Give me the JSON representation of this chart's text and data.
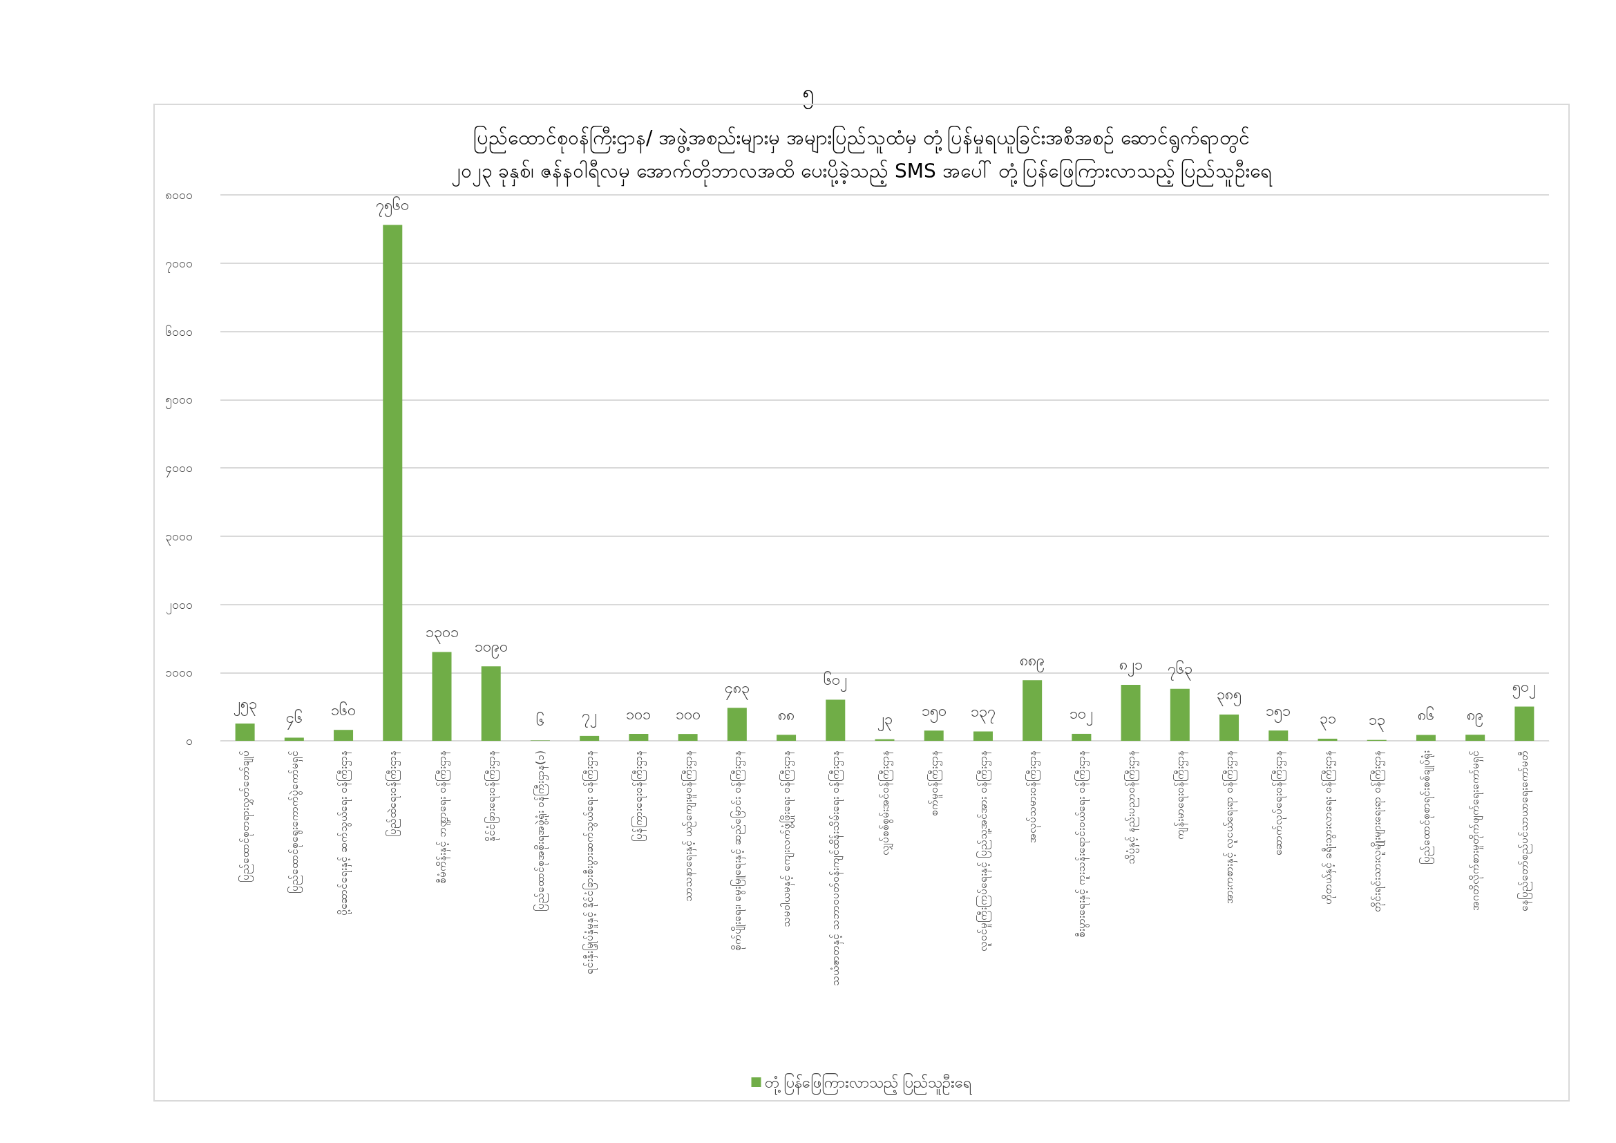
{
  "chart_data": {
    "type": "bar",
    "title": "ပြည်ထောင်စုဝန်ကြီးဌာန/ အဖွဲ့အစည်းများမှ အများပြည်သူထံမှ တုံ့ပြန်မှုရယူခြင်းအစီအစဉ် ဆောင်ရွက်ရာတွင်\n၂၀၂၃ ခုနှစ်၊ ဇန်နဝါရီလမှ အောက်တိုဘာလအထိ ပေးပို့ခဲ့သည့် SMS အပေါ် တုံ့ပြန်ဖြေကြားလာသည့် ပြည်သူဦးရေ",
    "annotations": [
      "၅"
    ],
    "categories": [
      "ပြည်ထောင်စုတရားလွှတ်တော်ချုပ်",
      "ပြည်ထောင်စုရွေးကောက်ပွဲကော်မရှင်",
      "ပို့ဆောင်ရေးနှင့် ဆက်သွယ်ရေး ဝန်ကြီးဌာန",
      "ပြည်ထဲရေးဝန်ကြီးဌာန",
      "စီမံကိန်းနှင့် ဘဏ္ဍာရေး ဝန်ကြီးဌာန",
      "နိုင်ငံခြားရေးဝန်ကြီးဌာန",
      "ပြည်ထောင်စုအစိုးရအဖွဲ့ရုံး ဝန်ကြီးဌာန(၁)",
      "ရင်းနှီးမြှုပ်နှံမှုနှင့် နိုင်ငံခြားစီးပွားဆက်သွယ်ရေး ဝန်ကြီးဌာန",
      "ပြန်ကြားရေးဝန်ကြီးဌာန",
      "သာသနာရေးနှင့် ယဉ်ကျေးမှုဝန်ကြီးဌာန",
      "စိုက်ပျိုးရေး၊ မွေးမြူရေးနှင့် ဆည်မြောင်း ဝန်ကြီးဌာန",
      "သမဝါယမနှင့် ကျေးလက်ဖွံ့ဖြိုးရေး ဝန်ကြီးဌာန",
      "သယံဇာတနှင့် သဘာဝပတ်ဝန်းကျင်ထိန်းသိမ်းရေး ဝန်ကြီးဌာန",
      "လျှပ်စစ်စွမ်းအင်ဝန်ကြီးဌာန",
      "စက်မှုဝန်ကြီးဌာန",
      "လူဝင်မှုကြီးကြပ်ရေးနှင့် ပြည်သူ့အင်အား ဝန်ကြီးဌာန",
      "အလုပ်သမားဝန်ကြီးဌာန",
      "စီးပွားရေးနှင့် ကူးသန်းရောင်းဝယ်ရေး ဝန်ကြီးဌာန",
      "သိပ္ပံနှင့် နည်းပညာဝန်ကြီးဌာန",
      "ကျန်းမာရေးဝန်ကြီးဌာန",
      "အားကစားနှင့် လူငယ်ရေးရာ ဝန်ကြီးဌာန",
      "ဆောက်လုပ်ရေးဝန်ကြီးဌာန",
      "ဟိုတယ်နှင့် ခရီးသွားလာရေး ဝန်ကြီးဌာန",
      "တိုင်းရင်းသားလူမျိုးများရေးရာ ဝန်ကြီးဌာန",
      "ပြည်ထောင်စုစာရင်းစစ်ချုပ်ရုံး",
      "အဂတိလိုက်စားမှုတိုက်ဖျက်ရေးကော်မရှင်",
      "နေပြည်တော်စည်ပင်သာယာရေးကော်မတီ"
    ],
    "series": [
      {
        "name": "တုံ့ပြန်ဖြေကြားလာသည့် ပြည်သူဦးရေ",
        "color": "#70ad47",
        "values": [
          253,
          46,
          160,
          7560,
          1301,
          1090,
          6,
          72,
          101,
          100,
          483,
          88,
          602,
          23,
          150,
          137,
          889,
          102,
          821,
          763,
          385,
          151,
          31,
          13,
          86,
          89,
          502
        ],
        "value_labels": [
          "၂၅၃",
          "၄၆",
          "၁၆၀",
          "၇၅၆၀",
          "၁၃၀၁",
          "၁၀၉၀",
          "၆",
          "၇၂",
          "၁၀၁",
          "၁၀၀",
          "၄၈၃",
          "၈၈",
          "၆၀၂",
          "၂၃",
          "၁၅၀",
          "၁၃၇",
          "၈၈၉",
          "၁၀၂",
          "၈၂၁",
          "၇၆၃",
          "၃၈၅",
          "၁၅၁",
          "၃၁",
          "၁၃",
          "၈၆",
          "၈၉",
          "၅၀၂"
        ]
      }
    ],
    "ylim": [
      0,
      8000
    ],
    "yticks": [
      {
        "value": 0,
        "label": "၀"
      },
      {
        "value": 1000,
        "label": "၁၀၀၀"
      },
      {
        "value": 2000,
        "label": "၂၀၀၀"
      },
      {
        "value": 3000,
        "label": "၃၀၀၀"
      },
      {
        "value": 4000,
        "label": "၄၀၀၀"
      },
      {
        "value": 5000,
        "label": "၅၀၀၀"
      },
      {
        "value": 6000,
        "label": "၆၀၀၀"
      },
      {
        "value": 7000,
        "label": "၇၀၀၀"
      },
      {
        "value": 8000,
        "label": "၈၀၀၀"
      }
    ],
    "grid": "y",
    "legend": "bottom"
  }
}
